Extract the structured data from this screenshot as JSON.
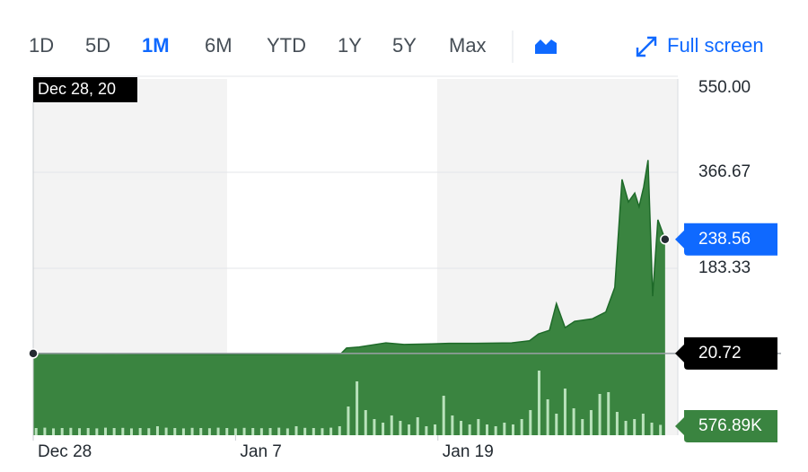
{
  "nav": {
    "ranges": [
      "1D",
      "5D",
      "1M",
      "6M",
      "YTD",
      "1Y",
      "5Y",
      "Max"
    ],
    "active_range": "1M",
    "fullscreen": "Full screen"
  },
  "chart_data": {
    "type": "area",
    "color": "#3a8440",
    "line_color": "#1e6a29",
    "tooltip": "Dec 28, 20",
    "x": [
      0,
      1.34,
      3.5,
      5.06,
      6.6,
      8.17,
      9.72,
      10.65,
      10.84,
      11.27,
      12.2,
      12.83,
      13.76,
      14.38,
      15.3,
      16.55,
      17.17,
      17.48,
      17.86,
      18.1,
      18.4,
      18.73,
      19.35,
      19.81,
      20.12,
      20.37,
      20.59,
      20.81,
      20.96,
      21.12,
      21.27,
      21.43,
      21.61,
      21.86
    ],
    "values": [
      20.72,
      20.5,
      19.8,
      19.5,
      19.0,
      19.2,
      19.9,
      20.5,
      31,
      33,
      41,
      38,
      39,
      40,
      40,
      41,
      45,
      58,
      65,
      116,
      70,
      82,
      87,
      100,
      147,
      353,
      310,
      327,
      301,
      339,
      390,
      130,
      276,
      238.56
    ],
    "xlim": [
      0,
      22.3
    ],
    "xticks": [
      {
        "value": 0,
        "label": "Dec 28"
      },
      {
        "value": 7,
        "label": "Jan 7"
      },
      {
        "value": 14,
        "label": "Jan 19"
      }
    ],
    "ylim": [
      0,
      550
    ],
    "yticks": [
      183.33,
      366.67,
      {
        "value": 550,
        "label": "550.00"
      }
    ],
    "grid": true,
    "previous_close": 20.72,
    "volume": {
      "color": "#b9e2bb",
      "ylim": [
        0,
        4000000
      ],
      "last_label": "576.89K",
      "x": [
        0.1,
        0.4,
        0.7,
        1.0,
        1.3,
        1.6,
        1.9,
        2.2,
        2.5,
        2.8,
        3.1,
        3.4,
        3.7,
        4.0,
        4.3,
        4.6,
        4.9,
        5.2,
        5.5,
        5.8,
        6.1,
        6.4,
        6.7,
        7.0,
        7.3,
        7.6,
        7.9,
        8.2,
        8.5,
        8.8,
        9.1,
        9.4,
        9.7,
        10.0,
        10.3,
        10.6,
        10.9,
        11.2,
        11.5,
        11.8,
        12.1,
        12.4,
        12.7,
        13.0,
        13.3,
        13.6,
        13.9,
        14.2,
        14.5,
        14.8,
        15.1,
        15.4,
        15.7,
        16.0,
        16.3,
        16.6,
        16.9,
        17.2,
        17.5,
        17.8,
        18.1,
        18.4,
        18.7,
        19.0,
        19.3,
        19.6,
        19.9,
        20.2,
        20.5,
        20.8,
        21.1,
        21.4,
        21.7
      ],
      "values": [
        400000,
        420000,
        380000,
        400000,
        410000,
        390000,
        400000,
        380000,
        420000,
        400000,
        410000,
        380000,
        400000,
        390000,
        500000,
        420000,
        400000,
        380000,
        410000,
        400000,
        390000,
        420000,
        400000,
        380000,
        410000,
        400000,
        390000,
        400000,
        420000,
        380000,
        500000,
        410000,
        400000,
        390000,
        420000,
        500000,
        1600000,
        3000000,
        1400000,
        900000,
        700000,
        1100000,
        800000,
        600000,
        1000000,
        500000,
        600000,
        2200000,
        1100000,
        800000,
        600000,
        900000,
        600000,
        500000,
        700000,
        600000,
        900000,
        1400000,
        3600000,
        2000000,
        1200000,
        2600000,
        1500000,
        900000,
        1400000,
        2300000,
        2400000,
        1300000,
        800000,
        900000,
        1200000,
        700000,
        576890
      ]
    }
  }
}
